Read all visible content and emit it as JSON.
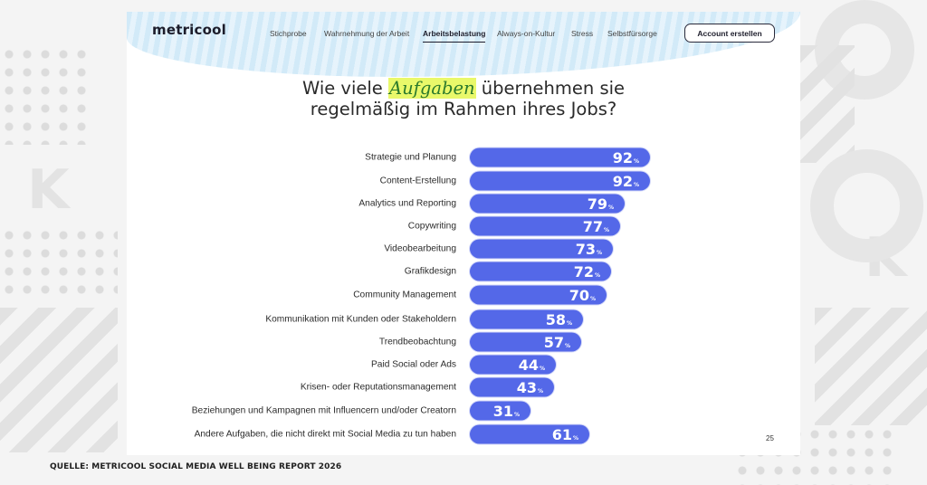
{
  "nav": {
    "logo": "metricool",
    "items": [
      {
        "label": "Stichprobe",
        "active": false
      },
      {
        "label": "Wahrnehmung der Arbeit",
        "active": false
      },
      {
        "label": "Arbeitsbelastung",
        "active": true
      },
      {
        "label": "Always-on-Kultur",
        "active": false
      },
      {
        "label": "Stress",
        "active": false
      },
      {
        "label": "Selbstfürsorge",
        "active": false
      }
    ],
    "cta_label": "Account erstellen"
  },
  "heading": {
    "before": "Wie viele ",
    "highlight": "Aufgaben",
    "after_line1": " übernehmen sie",
    "line2": "regelmäßig im Rahmen ihres Jobs?"
  },
  "colors": {
    "bar": "#5468e8",
    "highlight": "#e9f86a"
  },
  "chart_data": {
    "type": "bar",
    "orientation": "horizontal",
    "title": "Wie viele Aufgaben übernehmen sie regelmäßig im Rahmen ihres Jobs?",
    "unit": "%",
    "xlim": [
      0,
      100
    ],
    "categories": [
      "Strategie und Planung",
      "Content-Erstellung",
      "Analytics und Reporting",
      "Copywriting",
      "Videobearbeitung",
      "Grafikdesign",
      "Community Management",
      "Kommunikation mit Kunden oder Stakeholdern",
      "Trendbeobachtung",
      "Paid Social oder Ads",
      "Krisen- oder Reputationsmanagement",
      "Beziehungen und Kampagnen mit Influencern und/oder Creatorn",
      "Andere Aufgaben, die nicht direkt mit Social Media zu tun haben"
    ],
    "values": [
      92,
      92,
      79,
      77,
      73,
      72,
      70,
      58,
      57,
      44,
      43,
      31,
      61
    ]
  },
  "footer": {
    "source": "QUELLE: METRICOOL SOCIAL MEDIA WELL BEING REPORT 2026",
    "page_number": "25"
  }
}
